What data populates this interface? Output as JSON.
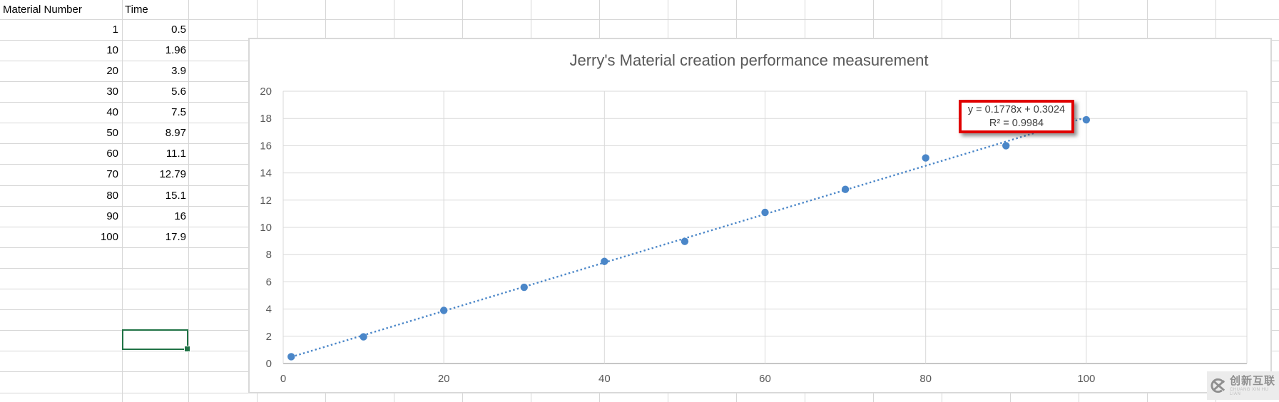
{
  "spreadsheet": {
    "table": {
      "headers": [
        "Material Number",
        "Time"
      ],
      "rows": [
        [
          "1",
          "0.5"
        ],
        [
          "10",
          "1.96"
        ],
        [
          "20",
          "3.9"
        ],
        [
          "30",
          "5.6"
        ],
        [
          "40",
          "7.5"
        ],
        [
          "50",
          "8.97"
        ],
        [
          "60",
          "11.1"
        ],
        [
          "70",
          "12.79"
        ],
        [
          "80",
          "15.1"
        ],
        [
          "90",
          "16"
        ],
        [
          "100",
          "17.9"
        ]
      ]
    }
  },
  "chart_data": {
    "type": "scatter",
    "title": "Jerry's Material creation performance measurement",
    "series_name": "Time",
    "x": [
      1,
      10,
      20,
      30,
      40,
      50,
      60,
      70,
      80,
      90,
      100
    ],
    "y": [
      0.5,
      1.96,
      3.9,
      5.6,
      7.5,
      8.97,
      11.1,
      12.79,
      15.1,
      16,
      17.9
    ],
    "xlim": [
      0,
      120
    ],
    "ylim": [
      0,
      20
    ],
    "xticks": [
      0,
      20,
      40,
      60,
      80,
      100
    ],
    "yticks": [
      0,
      2,
      4,
      6,
      8,
      10,
      12,
      14,
      16,
      18,
      20
    ],
    "grid": true,
    "legend": "none",
    "trendline": {
      "type": "linear",
      "slope": 0.1778,
      "intercept": 0.3024,
      "x_range": [
        1,
        100
      ],
      "equation": "y = 0.1778x + 0.3024",
      "r2": "R² = 0.9984",
      "style": "dotted"
    }
  },
  "watermark": {
    "text": "创新互联",
    "subtext": "CHUANG XIN HU LIAN"
  },
  "colors": {
    "series_blue": "#4a86c8",
    "equation_border": "#e00000",
    "selection_green": "#217346",
    "title_gray": "#595959",
    "gridline_gray": "#d9d9d9",
    "axis_gray": "#b3b3b3",
    "sheet_gridline": "#d6d6d6"
  }
}
